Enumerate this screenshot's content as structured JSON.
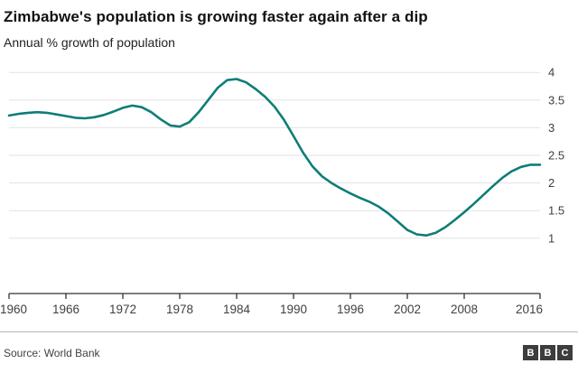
{
  "header": {
    "title": "Zimbabwe's population is growing faster again after a dip",
    "subtitle": "Annual % growth of population"
  },
  "footer": {
    "source": "Source: World Bank",
    "logo_letters": [
      "B",
      "B",
      "C"
    ]
  },
  "colors": {
    "line": "#0e7d78",
    "grid": "#e2e2e2",
    "axis": "#333333",
    "text": "#404040"
  },
  "chart_data": {
    "type": "line",
    "title": "Zimbabwe's population is growing faster again after a dip",
    "subtitle": "Annual % growth of population",
    "xlabel": "",
    "ylabel": "Annual % growth of population",
    "grid": "horizontal",
    "legend_position": "none",
    "ylabel_side": "right",
    "xlim": [
      1960,
      2016
    ],
    "ylim": [
      0,
      4.15
    ],
    "xticks": [
      1960,
      1966,
      1972,
      1978,
      1984,
      1990,
      1996,
      2002,
      2008,
      2016
    ],
    "yticks": [
      1,
      1.5,
      2,
      2.5,
      3,
      3.5,
      4
    ],
    "x": [
      1960,
      1961,
      1962,
      1963,
      1964,
      1965,
      1966,
      1967,
      1968,
      1969,
      1970,
      1971,
      1972,
      1973,
      1974,
      1975,
      1976,
      1977,
      1978,
      1979,
      1980,
      1981,
      1982,
      1983,
      1984,
      1985,
      1986,
      1987,
      1988,
      1989,
      1990,
      1991,
      1992,
      1993,
      1994,
      1995,
      1996,
      1997,
      1998,
      1999,
      2000,
      2001,
      2002,
      2003,
      2004,
      2005,
      2006,
      2007,
      2008,
      2009,
      2010,
      2011,
      2012,
      2013,
      2014,
      2015,
      2016
    ],
    "values": [
      3.22,
      3.25,
      3.27,
      3.28,
      3.27,
      3.24,
      3.21,
      3.18,
      3.17,
      3.19,
      3.23,
      3.29,
      3.36,
      3.4,
      3.37,
      3.28,
      3.15,
      3.04,
      3.02,
      3.1,
      3.28,
      3.5,
      3.72,
      3.86,
      3.88,
      3.82,
      3.7,
      3.56,
      3.38,
      3.14,
      2.85,
      2.55,
      2.3,
      2.12,
      2.0,
      1.9,
      1.81,
      1.73,
      1.66,
      1.57,
      1.45,
      1.3,
      1.15,
      1.07,
      1.05,
      1.1,
      1.2,
      1.33,
      1.47,
      1.62,
      1.78,
      1.94,
      2.09,
      2.21,
      2.29,
      2.33,
      2.33
    ]
  }
}
